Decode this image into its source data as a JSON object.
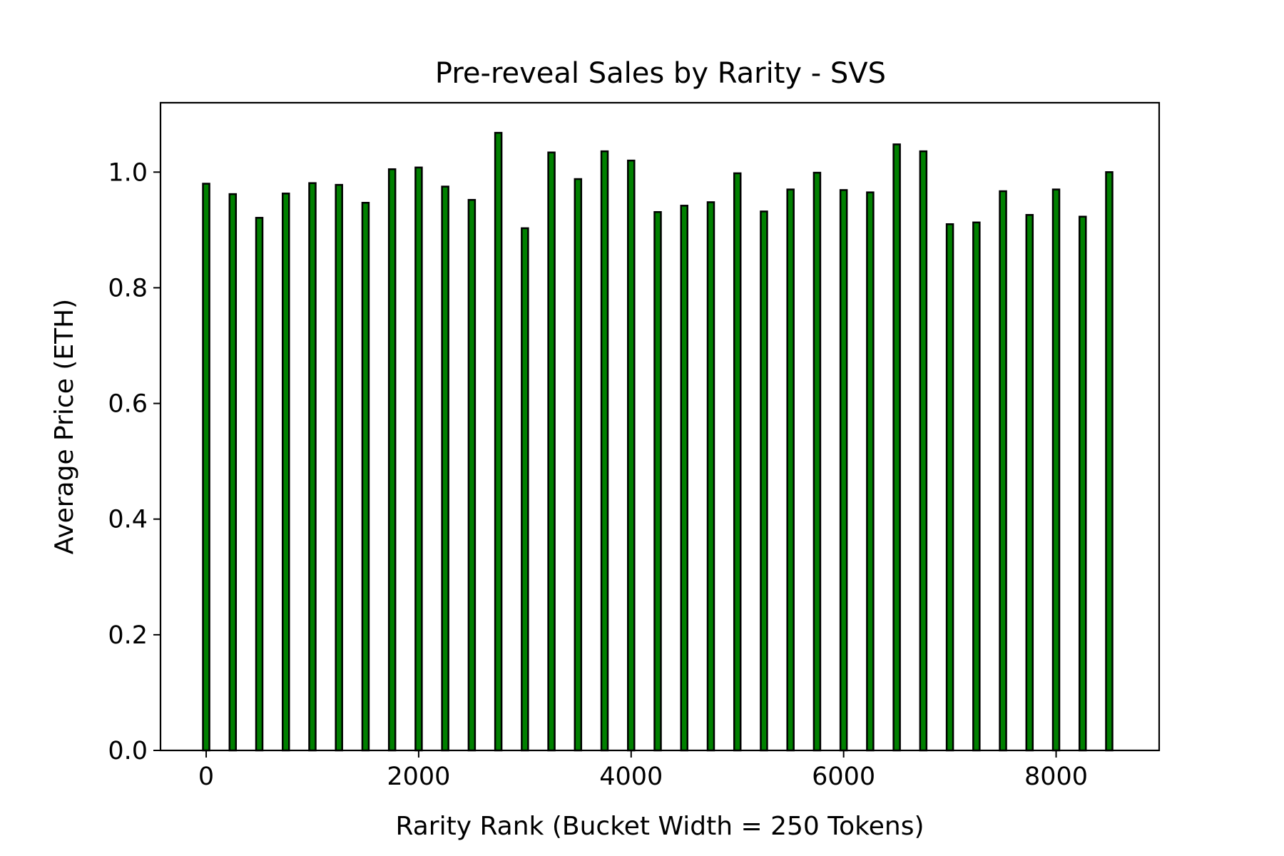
{
  "chart_data": {
    "type": "bar",
    "title": "Pre-reveal Sales by Rarity - SVS",
    "xlabel": "Rarity Rank (Bucket Width = 250 Tokens)",
    "ylabel": "Average Price (ETH)",
    "x": [
      0,
      250,
      500,
      750,
      1000,
      1250,
      1500,
      1750,
      2000,
      2250,
      2500,
      2750,
      3000,
      3250,
      3500,
      3750,
      4000,
      4250,
      4500,
      4750,
      5000,
      5250,
      5500,
      5750,
      6000,
      6250,
      6500,
      6750,
      7000,
      7250,
      7500,
      7750,
      8000,
      8250,
      8500
    ],
    "values": [
      0.98,
      0.962,
      0.921,
      0.963,
      0.981,
      0.978,
      0.947,
      1.005,
      1.008,
      0.975,
      0.952,
      1.068,
      0.903,
      1.034,
      0.988,
      1.036,
      1.02,
      0.931,
      0.942,
      0.948,
      0.998,
      0.932,
      0.97,
      0.999,
      0.969,
      0.965,
      1.048,
      1.036,
      0.91,
      0.913,
      0.967,
      0.926,
      0.97,
      0.923,
      1.0
    ],
    "xlim": [
      -430,
      8970
    ],
    "ylim": [
      0,
      1.12
    ],
    "xticks": [
      0,
      2000,
      4000,
      6000,
      8000
    ],
    "xtick_labels": [
      "0",
      "2000",
      "4000",
      "6000",
      "8000"
    ],
    "yticks": [
      0.0,
      0.2,
      0.4,
      0.6,
      0.8,
      1.0
    ],
    "ytick_labels": [
      "0.0",
      "0.2",
      "0.4",
      "0.6",
      "0.8",
      "1.0"
    ],
    "grid": false,
    "legend": "none",
    "bar_color": "#008000",
    "edge_color": "#000000"
  }
}
